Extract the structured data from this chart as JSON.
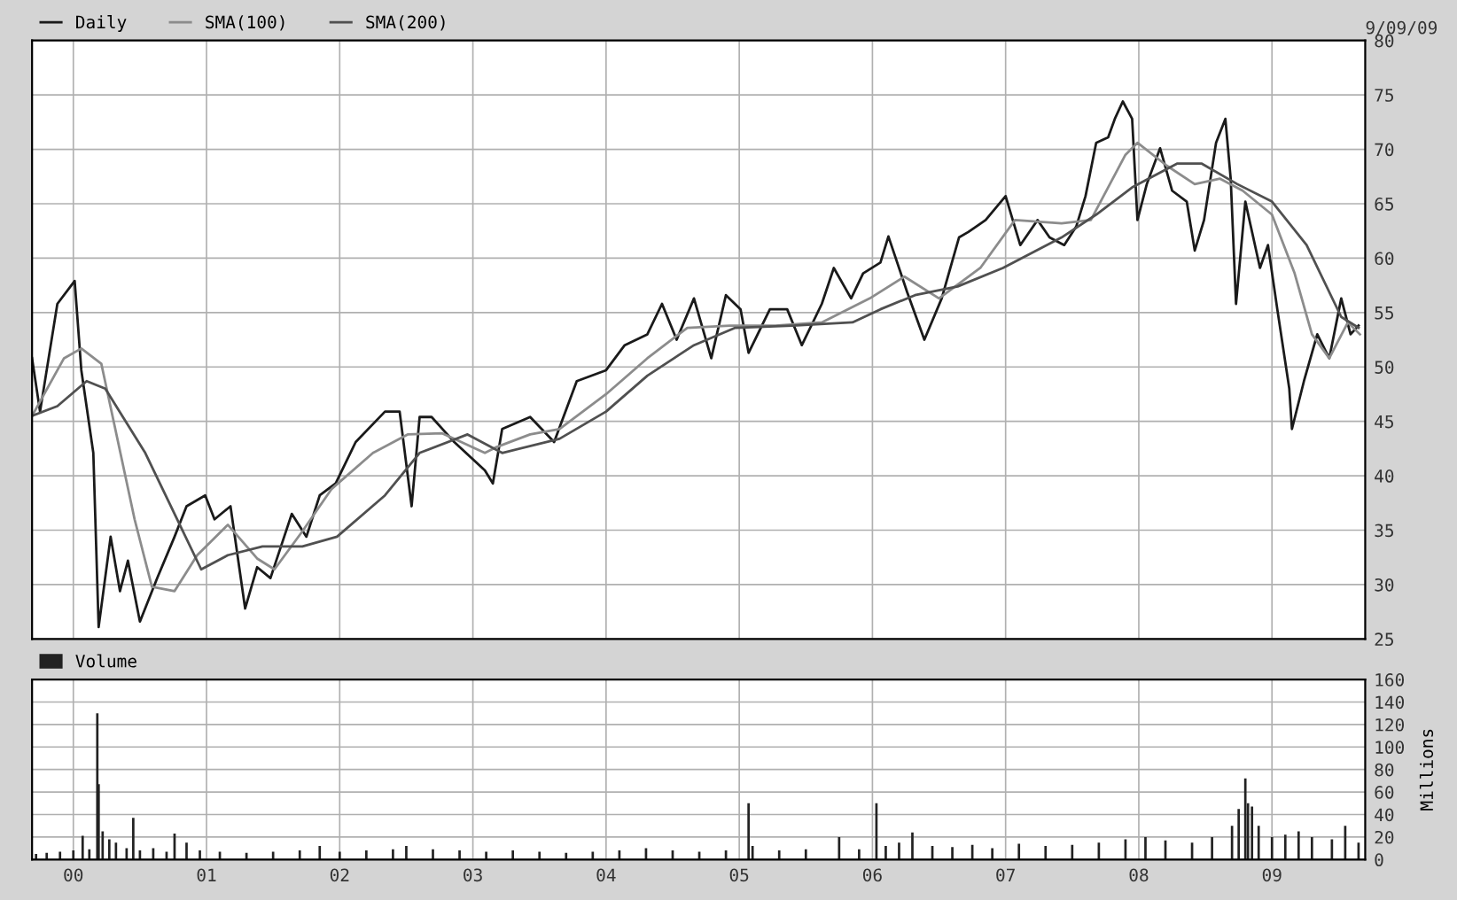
{
  "chart_data": [
    {
      "type": "line",
      "legend": "top left",
      "grid": true,
      "tick_labels": "y",
      "annotations": [
        "9/09/09"
      ],
      "xlim": [
        1999.69,
        2009.7
      ],
      "xticks": [
        {
          "value": 2000,
          "label": null
        },
        {
          "value": 2001,
          "label": null
        },
        {
          "value": 2002,
          "label": null
        },
        {
          "value": 2003,
          "label": null
        },
        {
          "value": 2004,
          "label": null
        },
        {
          "value": 2005,
          "label": null
        },
        {
          "value": 2006,
          "label": null
        },
        {
          "value": 2007,
          "label": null
        },
        {
          "value": 2008,
          "label": null
        },
        {
          "value": 2009,
          "label": null
        }
      ],
      "ylim": [
        25,
        80
      ],
      "yticks": [
        25,
        30,
        35,
        40,
        45,
        50,
        55,
        60,
        65,
        70,
        75,
        80
      ],
      "series": [
        {
          "name": "Daily",
          "color": "#1a1a1a",
          "x": [
            1999.69,
            1999.75,
            1999.88,
            2000.01,
            2000.06,
            2000.15,
            2000.19,
            2000.28,
            2000.35,
            2000.41,
            2000.5,
            2000.63,
            2000.76,
            2000.85,
            2000.99,
            2001.06,
            2001.18,
            2001.29,
            2001.38,
            2001.48,
            2001.64,
            2001.75,
            2001.85,
            2001.97,
            2002.12,
            2002.34,
            2002.45,
            2002.54,
            2002.6,
            2002.69,
            2002.86,
            2003.09,
            2003.15,
            2003.22,
            2003.43,
            2003.61,
            2003.78,
            2004.0,
            2004.14,
            2004.31,
            2004.42,
            2004.53,
            2004.66,
            2004.79,
            2004.9,
            2005.01,
            2005.07,
            2005.23,
            2005.36,
            2005.47,
            2005.62,
            2005.71,
            2005.84,
            2005.93,
            2006.06,
            2006.12,
            2006.26,
            2006.39,
            2006.52,
            2006.65,
            2006.72,
            2006.85,
            2007.0,
            2007.11,
            2007.24,
            2007.33,
            2007.44,
            2007.53,
            2007.6,
            2007.68,
            2007.77,
            2007.82,
            2007.88,
            2007.95,
            2007.99,
            2008.06,
            2008.16,
            2008.25,
            2008.36,
            2008.42,
            2008.49,
            2008.58,
            2008.65,
            2008.69,
            2008.73,
            2008.8,
            2008.91,
            2008.97,
            2009.04,
            2009.13,
            2009.15,
            2009.24,
            2009.34,
            2009.43,
            2009.52,
            2009.59,
            2009.65
          ],
          "values": [
            50.8,
            45.9,
            55.8,
            57.9,
            49.7,
            42.1,
            26.1,
            34.4,
            29.4,
            32.2,
            26.6,
            30.6,
            34.4,
            37.2,
            38.2,
            36.0,
            37.2,
            27.8,
            31.6,
            30.6,
            36.5,
            34.4,
            38.2,
            39.3,
            43.1,
            45.9,
            45.9,
            37.2,
            45.4,
            45.4,
            43.1,
            40.5,
            39.3,
            44.3,
            45.4,
            43.1,
            48.7,
            49.7,
            52.0,
            53.0,
            55.8,
            52.5,
            56.3,
            50.8,
            56.6,
            55.3,
            51.3,
            55.3,
            55.3,
            52.0,
            55.8,
            59.1,
            56.3,
            58.6,
            59.6,
            62.0,
            56.9,
            52.5,
            56.3,
            61.9,
            62.4,
            63.5,
            65.7,
            61.2,
            63.5,
            61.9,
            61.2,
            62.9,
            65.7,
            70.6,
            71.1,
            72.8,
            74.4,
            72.8,
            63.5,
            66.8,
            70.1,
            66.2,
            65.2,
            60.7,
            63.5,
            70.6,
            72.8,
            67.3,
            55.8,
            65.2,
            59.1,
            61.2,
            55.3,
            48.0,
            44.3,
            48.7,
            53.0,
            50.8,
            56.3,
            53.0,
            53.8
          ]
        },
        {
          "name": "SMA(100)",
          "color": "#8c8c8c",
          "x": [
            1999.69,
            1999.93,
            2000.06,
            2000.21,
            2000.46,
            2000.59,
            2000.76,
            2000.93,
            2001.16,
            2001.38,
            2001.51,
            2001.72,
            2001.94,
            2002.25,
            2002.51,
            2002.77,
            2003.09,
            2003.17,
            2003.43,
            2003.65,
            2004.0,
            2004.31,
            2004.61,
            2004.93,
            2005.27,
            2005.62,
            2005.98,
            2006.24,
            2006.5,
            2006.81,
            2007.07,
            2007.42,
            2007.64,
            2007.9,
            2007.99,
            2008.21,
            2008.42,
            2008.61,
            2008.78,
            2009.0,
            2009.17,
            2009.3,
            2009.43,
            2009.57,
            2009.66
          ],
          "values": [
            45.5,
            50.8,
            51.7,
            50.3,
            36.0,
            29.8,
            29.4,
            32.7,
            35.5,
            32.4,
            31.4,
            34.9,
            38.8,
            42.1,
            43.8,
            43.9,
            42.1,
            42.6,
            43.8,
            44.3,
            47.5,
            50.8,
            53.6,
            53.8,
            53.8,
            54.1,
            56.3,
            58.3,
            56.3,
            59.1,
            63.5,
            63.2,
            63.5,
            69.5,
            70.6,
            68.5,
            66.8,
            67.3,
            66.2,
            64.0,
            58.6,
            53.0,
            50.8,
            54.1,
            53.0
          ]
        },
        {
          "name": "SMA(200)",
          "color": "#505050",
          "x": [
            1999.69,
            1999.88,
            2000.1,
            2000.24,
            2000.54,
            2000.76,
            2000.96,
            2001.16,
            2001.42,
            2001.72,
            2001.98,
            2002.34,
            2002.6,
            2002.96,
            2003.22,
            2003.65,
            2004.0,
            2004.31,
            2004.66,
            2004.97,
            2005.4,
            2005.85,
            2006.06,
            2006.32,
            2006.64,
            2006.98,
            2007.42,
            2007.68,
            2007.95,
            2008.29,
            2008.47,
            2008.74,
            2009.0,
            2009.26,
            2009.52,
            2009.65
          ],
          "values": [
            45.5,
            46.4,
            48.7,
            48.0,
            42.1,
            36.5,
            31.4,
            32.7,
            33.5,
            33.5,
            34.4,
            38.2,
            42.1,
            43.8,
            42.1,
            43.4,
            45.9,
            49.2,
            52.0,
            53.6,
            53.8,
            54.1,
            55.3,
            56.6,
            57.4,
            59.1,
            61.9,
            64.0,
            66.5,
            68.7,
            68.7,
            66.8,
            65.2,
            61.2,
            54.6,
            53.6
          ]
        }
      ]
    },
    {
      "type": "bar",
      "legend": "top left",
      "grid": true,
      "ylabel": "Millions",
      "xlim": [
        1999.69,
        2009.7
      ],
      "xticks": [
        {
          "value": 2000,
          "label": "00"
        },
        {
          "value": 2001,
          "label": "01"
        },
        {
          "value": 2002,
          "label": "02"
        },
        {
          "value": 2003,
          "label": "03"
        },
        {
          "value": 2004,
          "label": "04"
        },
        {
          "value": 2005,
          "label": "05"
        },
        {
          "value": 2006,
          "label": "06"
        },
        {
          "value": 2007,
          "label": "07"
        },
        {
          "value": 2008,
          "label": "08"
        },
        {
          "value": 2009,
          "label": "09"
        }
      ],
      "ylim": [
        0,
        160
      ],
      "yticks": [
        0,
        20,
        40,
        60,
        80,
        100,
        120,
        140,
        160
      ],
      "series": [
        {
          "name": "Volume",
          "color": "#222222",
          "x": [
            1999.72,
            1999.8,
            1999.9,
            2000.0,
            2000.07,
            2000.12,
            2000.18,
            2000.19,
            2000.22,
            2000.27,
            2000.32,
            2000.4,
            2000.45,
            2000.5,
            2000.6,
            2000.7,
            2000.76,
            2000.85,
            2000.95,
            2001.1,
            2001.3,
            2001.5,
            2001.7,
            2001.85,
            2002.0,
            2002.2,
            2002.4,
            2002.5,
            2002.7,
            2002.9,
            2003.1,
            2003.3,
            2003.5,
            2003.7,
            2003.9,
            2004.1,
            2004.3,
            2004.5,
            2004.7,
            2004.9,
            2005.07,
            2005.1,
            2005.3,
            2005.5,
            2005.75,
            2005.9,
            2006.03,
            2006.1,
            2006.2,
            2006.3,
            2006.45,
            2006.6,
            2006.75,
            2006.9,
            2007.1,
            2007.3,
            2007.5,
            2007.7,
            2007.9,
            2008.05,
            2008.2,
            2008.4,
            2008.55,
            2008.7,
            2008.75,
            2008.8,
            2008.82,
            2008.85,
            2008.9,
            2009.0,
            2009.1,
            2009.2,
            2009.3,
            2009.45,
            2009.55,
            2009.65
          ],
          "values": [
            5,
            6,
            7,
            8,
            21,
            9,
            130,
            67,
            25,
            18,
            15,
            10,
            37,
            8,
            10,
            7,
            23,
            15,
            8,
            7,
            6,
            7,
            8,
            12,
            7,
            8,
            9,
            12,
            9,
            8,
            7,
            8,
            7,
            6,
            7,
            8,
            10,
            8,
            7,
            8,
            50,
            12,
            8,
            9,
            20,
            9,
            50,
            12,
            15,
            24,
            12,
            11,
            13,
            10,
            14,
            12,
            13,
            15,
            18,
            20,
            17,
            15,
            20,
            30,
            45,
            72,
            50,
            47,
            30,
            20,
            22,
            25,
            20,
            18,
            30,
            15
          ]
        }
      ]
    }
  ]
}
